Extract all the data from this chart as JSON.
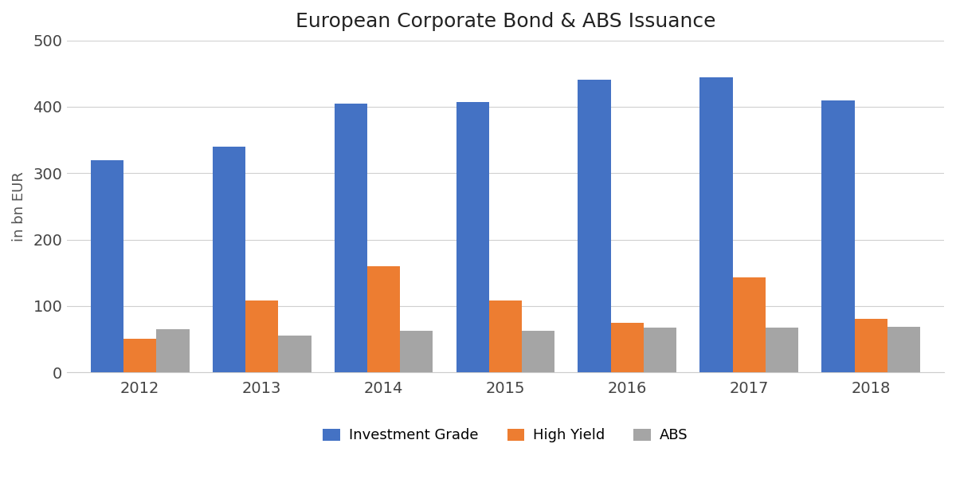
{
  "title": "European Corporate Bond & ABS Issuance",
  "years": [
    2012,
    2013,
    2014,
    2015,
    2016,
    2017,
    2018
  ],
  "investment_grade": [
    320,
    340,
    405,
    407,
    441,
    444,
    410
  ],
  "high_yield": [
    50,
    108,
    160,
    108,
    75,
    143,
    80
  ],
  "abs": [
    65,
    55,
    62,
    63,
    67,
    67,
    69
  ],
  "colors": {
    "investment_grade": "#4472C4",
    "high_yield": "#ED7D31",
    "abs": "#A5A5A5"
  },
  "ylabel": "in bn EUR",
  "ylim": [
    0,
    500
  ],
  "yticks": [
    0,
    100,
    200,
    300,
    400,
    500
  ],
  "legend_labels": [
    "Investment Grade",
    "High Yield",
    "ABS"
  ],
  "background_color": "#FFFFFF",
  "grid_color": "#D0D0D0",
  "bar_width": 0.27,
  "title_fontsize": 18,
  "axis_fontsize": 13,
  "tick_fontsize": 14,
  "legend_fontsize": 13
}
